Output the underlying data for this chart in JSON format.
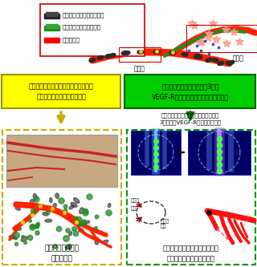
{
  "legend_items": [
    {
      "label": "元来の血管を構成する細胞",
      "color": "#333333"
    },
    {
      "label": "新生血管を構成する細胞",
      "color": "#228B22"
    },
    {
      "label": "血液の流れ",
      "color": "#FF0000"
    }
  ],
  "legend_box_color": "#CC0000",
  "label_chokusen": "直線部",
  "label_bunki": "分岐部",
  "yellow_box_text": "血管新生の分子メカニズムを生体内で\n定量的に観察することが可能",
  "green_box_text": "直線部と分岐部における約3倍の\nVEGF-R発現量の違いが血管新生に重要",
  "yellow_box_bg": "#FFFF00",
  "green_box_bg": "#00CC00",
  "arrow_color_yellow": "#CCAA00",
  "arrow_color_green": "#007700",
  "caption_left": "分子メカニズムの\n新概念構築",
  "caption_right": "局所性かつ低副作用を伴せ持つ\n動脈硬化性疾患療法の開発",
  "virus_text": "ウイルスベクター等で血管内皮細胞に\n3倍程度のVEGF-R遺伝子を導入。",
  "left_dashed_box_color": "#CCAA00",
  "right_dashed_box_color": "#009900",
  "label_ketsuryugen": "血流減",
  "label_kesseki": "血栓",
  "label_teisanso": "低酸素\n状態",
  "bg_color": "#FFFFFF"
}
